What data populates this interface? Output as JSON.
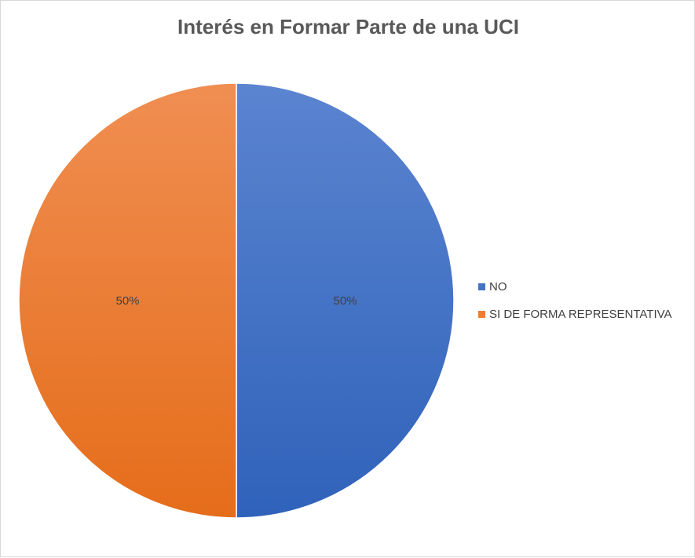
{
  "chart_data": {
    "type": "pie",
    "title": "Interés en Formar Parte de una UCI",
    "categories": [
      "NO",
      "SI DE FORMA REPRESENTATIVA"
    ],
    "values": [
      50,
      50
    ],
    "data_labels": [
      "50%",
      "50%"
    ],
    "colors": [
      "#4472C4",
      "#ED7D31"
    ],
    "legend": {
      "position": "right",
      "entries": [
        "NO",
        "SI DE FORMA REPRESENTATIVA"
      ]
    }
  }
}
